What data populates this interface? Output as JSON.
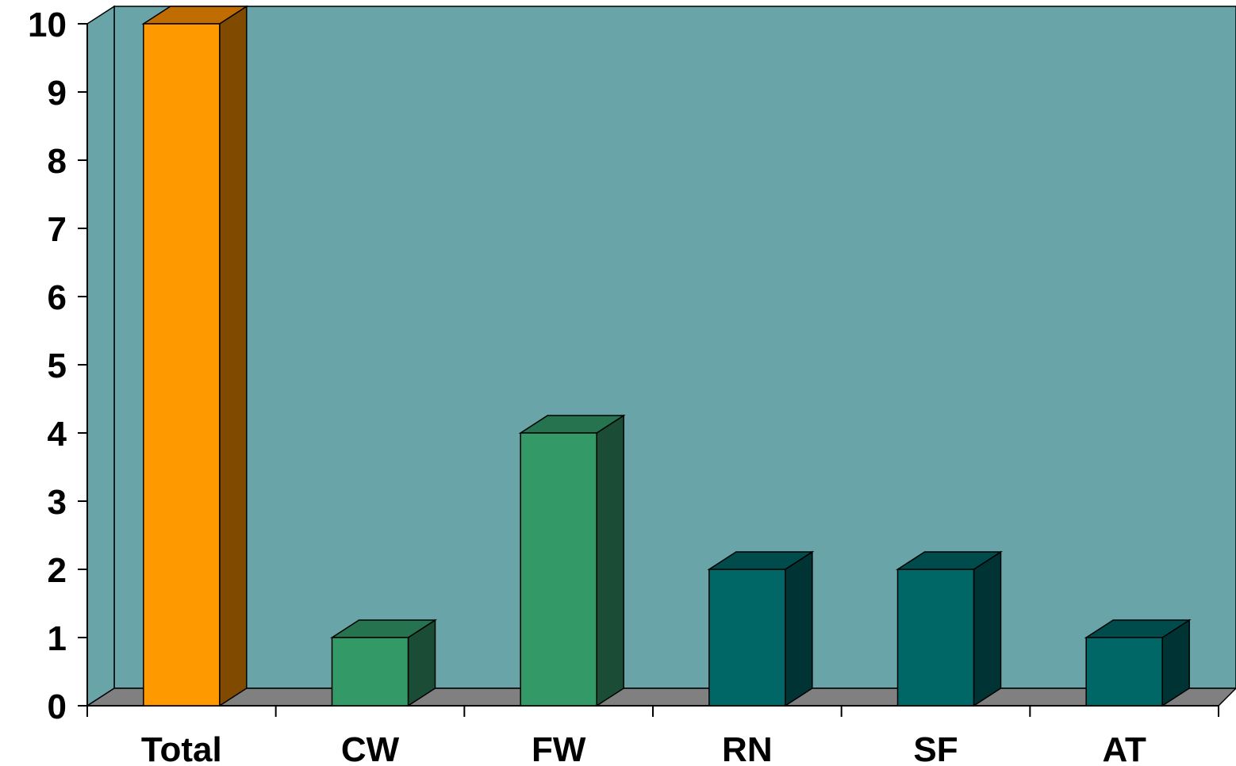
{
  "chart_data": {
    "type": "bar",
    "title": "",
    "xlabel": "",
    "ylabel": "",
    "categories": [
      "Total",
      "CW",
      "FW",
      "RN",
      "SF",
      "AT"
    ],
    "values": [
      10,
      1,
      4,
      2,
      2,
      1
    ],
    "ylim": [
      0,
      10
    ],
    "yticks": [
      0,
      1,
      2,
      3,
      4,
      5,
      6,
      7,
      8,
      9,
      10
    ],
    "grid": false,
    "legend": "none",
    "three_d": true,
    "colors": {
      "wall": "#69A4A8",
      "floor": "#808080",
      "bars": [
        {
          "front": "#FF9900",
          "top": "#C06C00",
          "side": "#804A00"
        },
        {
          "front": "#339966",
          "top": "#267350",
          "side": "#1B4D36"
        },
        {
          "front": "#339966",
          "top": "#267350",
          "side": "#1B4D36"
        },
        {
          "front": "#006666",
          "top": "#004C4C",
          "side": "#003333"
        },
        {
          "front": "#006666",
          "top": "#004C4C",
          "side": "#003333"
        },
        {
          "front": "#006666",
          "top": "#004C4C",
          "side": "#003333"
        }
      ]
    }
  }
}
